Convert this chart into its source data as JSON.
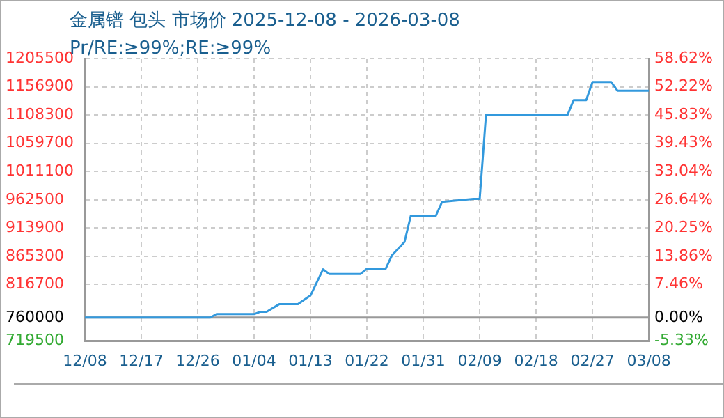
{
  "chart_data": {
    "type": "line",
    "title": "金属镨 包头 市场价 2025-12-08 - 2026-03-08",
    "subtitle": "Pr/RE:≥99%;RE:≥99%",
    "x": [
      "2025-12-08",
      "2025-12-28",
      "2025-12-29",
      "2026-01-04",
      "2026-01-05",
      "2026-01-06",
      "2026-01-08",
      "2026-01-11",
      "2026-01-13",
      "2026-01-15",
      "2026-01-16",
      "2026-01-21",
      "2026-01-22",
      "2026-01-25",
      "2026-01-26",
      "2026-01-28",
      "2026-01-29",
      "2026-02-02",
      "2026-02-03",
      "2026-02-08",
      "2026-02-09",
      "2026-02-10",
      "2026-02-23",
      "2026-02-24",
      "2026-02-26",
      "2026-02-27",
      "2026-03-02",
      "2026-03-03",
      "2026-03-08"
    ],
    "series": [
      {
        "color": "#3399dd",
        "values": [
          760000,
          760000,
          766000,
          766000,
          770000,
          770000,
          783000,
          783000,
          798000,
          843000,
          835000,
          835000,
          844000,
          844000,
          867000,
          890000,
          935000,
          935000,
          959000,
          964000,
          964000,
          1108000,
          1108000,
          1134000,
          1134000,
          1165000,
          1165000,
          1150000,
          1150000
        ]
      }
    ],
    "xlim": [
      "2025-12-08",
      "2026-03-08"
    ],
    "xticks": [
      {
        "value": "2025-12-08",
        "label": "12/08"
      },
      {
        "value": "2025-12-17",
        "label": "12/17"
      },
      {
        "value": "2025-12-26",
        "label": "12/26"
      },
      {
        "value": "2026-01-04",
        "label": "01/04"
      },
      {
        "value": "2026-01-13",
        "label": "01/13"
      },
      {
        "value": "2026-01-22",
        "label": "01/22"
      },
      {
        "value": "2026-01-31",
        "label": "01/31"
      },
      {
        "value": "2026-02-09",
        "label": "02/09"
      },
      {
        "value": "2026-02-18",
        "label": "02/18"
      },
      {
        "value": "2026-02-27",
        "label": "02/27"
      },
      {
        "value": "2026-03-08",
        "label": "03/08"
      }
    ],
    "ylim": [
      719500,
      1205500
    ],
    "yticks": [
      719500,
      760000,
      816700,
      865300,
      913900,
      962500,
      1011100,
      1059700,
      1108300,
      1156900,
      1205500
    ],
    "y2lim": [
      -5.33,
      58.62
    ],
    "y2ticks": [
      {
        "value": -5.33,
        "label": "-5.33%"
      },
      {
        "value": 0,
        "label": "0.00%"
      },
      {
        "value": 7.46,
        "label": "7.46%"
      },
      {
        "value": 13.86,
        "label": "13.86%"
      },
      {
        "value": 20.25,
        "label": "20.25%"
      },
      {
        "value": 26.64,
        "label": "26.64%"
      },
      {
        "value": 33.04,
        "label": "33.04%"
      },
      {
        "value": 39.43,
        "label": "39.43%"
      },
      {
        "value": 45.83,
        "label": "45.83%"
      },
      {
        "value": 52.22,
        "label": "52.22%"
      },
      {
        "value": 58.62,
        "label": "58.62%"
      }
    ],
    "ref_lines": [
      {
        "axis": "y",
        "value": 760000,
        "color": "#999999"
      }
    ],
    "grid": true,
    "legend": false,
    "marker": "none",
    "line_style": "solid"
  }
}
